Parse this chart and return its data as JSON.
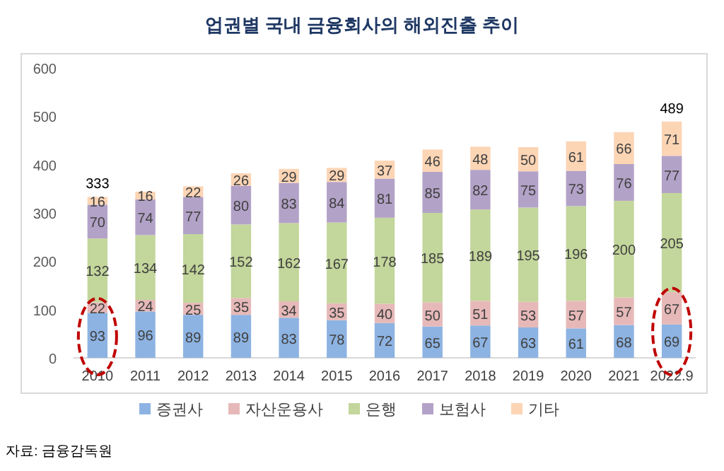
{
  "chart_data": {
    "type": "bar",
    "stacked": true,
    "title": "업권별 국내 금융회사의 해외진출 추이",
    "categories": [
      "2010",
      "2011",
      "2012",
      "2013",
      "2014",
      "2015",
      "2016",
      "2017",
      "2018",
      "2019",
      "2020",
      "2021",
      "2022.9"
    ],
    "series": [
      {
        "name": "증권사",
        "color": "#8db3e2",
        "values": [
          93,
          96,
          89,
          89,
          83,
          78,
          72,
          65,
          67,
          63,
          61,
          68,
          69
        ]
      },
      {
        "name": "자산운용사",
        "color": "#e6b9b8",
        "values": [
          22,
          24,
          25,
          35,
          34,
          35,
          40,
          50,
          51,
          53,
          57,
          57,
          67
        ]
      },
      {
        "name": "은행",
        "color": "#c3d69b",
        "values": [
          132,
          134,
          142,
          152,
          162,
          167,
          178,
          185,
          189,
          195,
          196,
          200,
          205
        ]
      },
      {
        "name": "보험사",
        "color": "#b3a2c7",
        "values": [
          70,
          74,
          77,
          80,
          83,
          84,
          81,
          85,
          82,
          75,
          73,
          76,
          77
        ]
      },
      {
        "name": "기타",
        "color": "#fcd5b5",
        "values": [
          16,
          16,
          22,
          26,
          29,
          29,
          37,
          46,
          48,
          50,
          61,
          66,
          71
        ]
      }
    ],
    "ylim": [
      0,
      600
    ],
    "yticks": [
      0,
      100,
      200,
      300,
      400,
      500,
      600
    ],
    "data_labels": true,
    "totals": [
      "333",
      null,
      null,
      null,
      null,
      null,
      null,
      null,
      null,
      null,
      null,
      null,
      "489"
    ],
    "legend": "bottom",
    "annotations": [
      "자료: 금융감독원"
    ]
  }
}
